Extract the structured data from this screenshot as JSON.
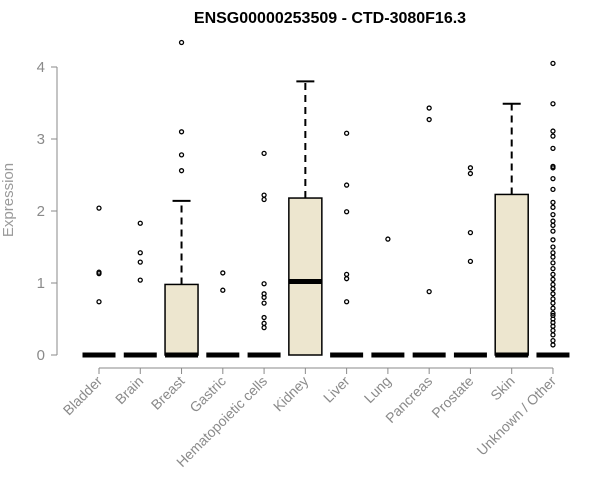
{
  "chart_data": {
    "type": "boxplot",
    "title": "ENSG00000253509 - CTD-3080F16.3",
    "xlabel": "",
    "ylabel": "Expression",
    "ylim": [
      0,
      4.4
    ],
    "yticks": [
      0,
      1,
      2,
      3,
      4
    ],
    "grid": false,
    "legend": "none",
    "colors": {
      "box_fill": "#ede6cf",
      "box_stroke": "#000000",
      "axis": "#8a8a8a"
    },
    "categories": [
      "Bladder",
      "Brain",
      "Breast",
      "Gastric",
      "Hematopoietic cells",
      "Kidney",
      "Liver",
      "Lung",
      "Pancreas",
      "Prostate",
      "Skin",
      "Unknown / Other"
    ],
    "boxes": [
      {
        "category": "Bladder",
        "q1": 0,
        "median": 0,
        "q3": 0,
        "whisker_low": 0,
        "whisker_high": 0,
        "outliers": [
          2.04,
          1.15,
          1.13,
          0.74
        ]
      },
      {
        "category": "Brain",
        "q1": 0,
        "median": 0,
        "q3": 0,
        "whisker_low": 0,
        "whisker_high": 0,
        "outliers": [
          1.83,
          1.42,
          1.29,
          1.04
        ]
      },
      {
        "category": "Breast",
        "q1": 0,
        "median": 0,
        "q3": 0.98,
        "whisker_low": 0,
        "whisker_high": 2.14,
        "outliers": [
          4.34,
          3.1,
          2.78,
          2.56
        ]
      },
      {
        "category": "Gastric",
        "q1": 0,
        "median": 0,
        "q3": 0,
        "whisker_low": 0,
        "whisker_high": 0,
        "outliers": [
          1.14,
          0.9
        ]
      },
      {
        "category": "Hematopoietic cells",
        "q1": 0,
        "median": 0,
        "q3": 0,
        "whisker_low": 0,
        "whisker_high": 0,
        "outliers": [
          2.8,
          2.22,
          2.16,
          0.99,
          0.85,
          0.8,
          0.72,
          0.52,
          0.44,
          0.38
        ]
      },
      {
        "category": "Kidney",
        "q1": 0,
        "median": 1.02,
        "q3": 2.18,
        "whisker_low": 0,
        "whisker_high": 3.8,
        "outliers": []
      },
      {
        "category": "Liver",
        "q1": 0,
        "median": 0,
        "q3": 0,
        "whisker_low": 0,
        "whisker_high": 0,
        "outliers": [
          3.08,
          2.36,
          1.99,
          1.12,
          1.06,
          0.74
        ]
      },
      {
        "category": "Lung",
        "q1": 0,
        "median": 0,
        "q3": 0,
        "whisker_low": 0,
        "whisker_high": 0,
        "outliers": [
          1.61
        ]
      },
      {
        "category": "Pancreas",
        "q1": 0,
        "median": 0,
        "q3": 0,
        "whisker_low": 0,
        "whisker_high": 0,
        "outliers": [
          3.43,
          3.27,
          0.88
        ]
      },
      {
        "category": "Prostate",
        "q1": 0,
        "median": 0,
        "q3": 0,
        "whisker_low": 0,
        "whisker_high": 0,
        "outliers": [
          2.6,
          2.52,
          1.7,
          1.3
        ]
      },
      {
        "category": "Skin",
        "q1": 0,
        "median": 0,
        "q3": 2.23,
        "whisker_low": 0,
        "whisker_high": 3.49,
        "outliers": []
      },
      {
        "category": "Unknown / Other",
        "q1": 0,
        "median": 0,
        "q3": 0,
        "whisker_low": 0,
        "whisker_high": 0,
        "outliers": [
          4.05,
          3.49,
          3.11,
          3.04,
          2.87,
          2.62,
          2.6,
          2.45,
          2.3,
          2.12,
          2.05,
          1.95,
          1.86,
          1.8,
          1.72,
          1.6,
          1.5,
          1.42,
          1.36,
          1.28,
          1.2,
          1.12,
          1.05,
          0.98,
          0.92,
          0.85,
          0.78,
          0.72,
          0.65,
          0.58,
          0.55,
          0.5,
          0.45,
          0.4,
          0.34,
          0.28,
          0.2,
          0.14
        ]
      }
    ]
  }
}
